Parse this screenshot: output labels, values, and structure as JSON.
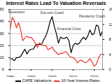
{
  "chart_data": {
    "type": "line",
    "title": "Interest Rates Lead To Valuation Reversals",
    "x": [
      1980,
      1981,
      1982,
      1983,
      1984,
      1985,
      1986,
      1987,
      1988,
      1989,
      1990,
      1991,
      1992,
      1993,
      1994,
      1995,
      1996,
      1997,
      1998,
      1999,
      2000,
      2001,
      2002,
      2003,
      2004,
      2005,
      2006,
      2007,
      2008,
      2009,
      2010,
      2011,
      2012,
      2013,
      2014,
      2015,
      2016,
      2017,
      2018,
      2019,
      2020,
      2021,
      2022,
      2023,
      2024
    ],
    "series": [
      {
        "name": "CAPE Valuations",
        "color": "#000000",
        "values": [
          9,
          9,
          7.5,
          10,
          10,
          11,
          14,
          17,
          13,
          16,
          17,
          17,
          20,
          21,
          21,
          21,
          25,
          28,
          33,
          40,
          44,
          36,
          30,
          22,
          27,
          26,
          26,
          27,
          24,
          14,
          20,
          22,
          21,
          22,
          25,
          27,
          25,
          28,
          33,
          29,
          30,
          37,
          36,
          28,
          32
        ]
      },
      {
        "name": "10-Year Interest Rates",
        "color": "#e8332a",
        "axis": "y2",
        "values": [
          10.8,
          13.9,
          13.0,
          11.1,
          12.5,
          10.6,
          7.7,
          8.4,
          8.9,
          8.5,
          8.6,
          7.9,
          7.0,
          5.9,
          7.1,
          6.6,
          6.4,
          6.4,
          5.3,
          5.6,
          6.0,
          5.0,
          4.6,
          4.0,
          4.3,
          4.3,
          4.8,
          4.6,
          3.7,
          3.3,
          3.2,
          2.8,
          1.8,
          2.4,
          2.5,
          2.1,
          1.8,
          2.3,
          2.9,
          2.1,
          0.9,
          1.4,
          3.0,
          4.0,
          4.2
        ]
      }
    ],
    "xlim": [
      1980,
      2024
    ],
    "xticks": [
      1980,
      1990,
      2000,
      2010,
      2020
    ],
    "ylim": [
      0,
      50
    ],
    "yticks": [
      0,
      10,
      20,
      30,
      40,
      50
    ],
    "y2lim": [
      0,
      16
    ],
    "y2ticks": [
      0,
      4,
      8,
      12,
      16
    ],
    "grid": true,
    "annotations": [
      {
        "text": "Recession",
        "x": 1983,
        "y": 48
      },
      {
        "text": "Dot.com Crash",
        "x": 2000,
        "y": 47
      },
      {
        "text": "Financial Crisis",
        "x": 2008,
        "y": 34
      },
      {
        "text": "Pandemic Crash",
        "x": 2019,
        "y": 44
      }
    ]
  }
}
